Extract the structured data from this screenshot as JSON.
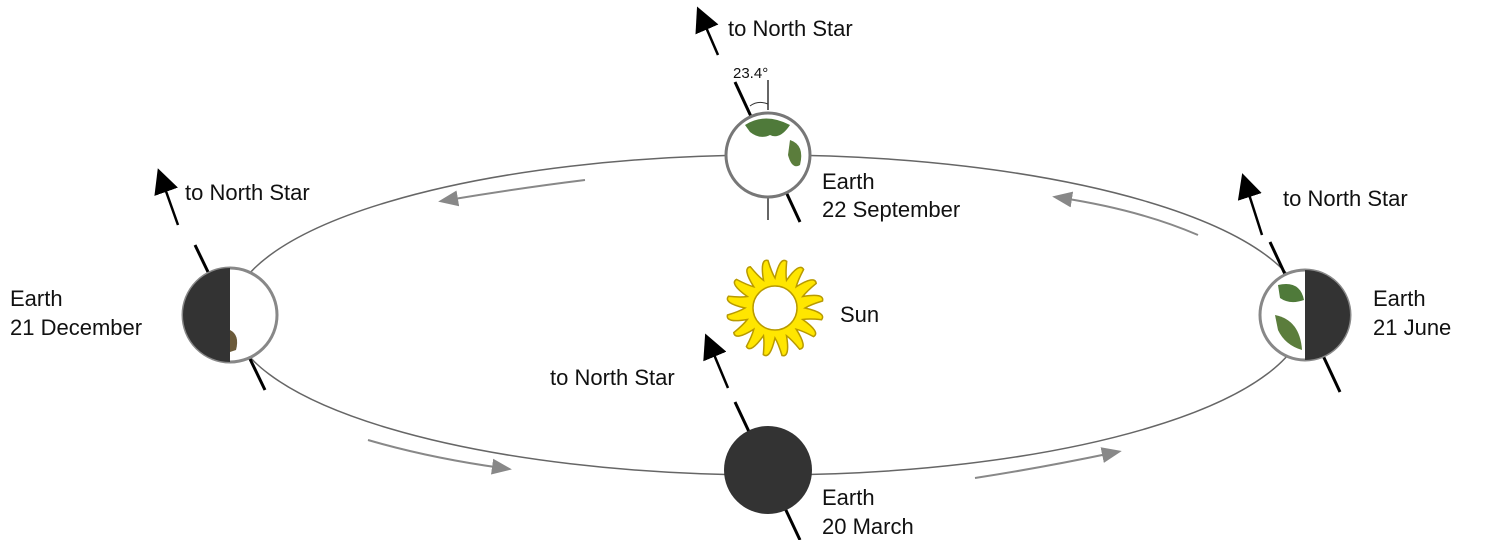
{
  "sun": {
    "label": "Sun"
  },
  "earths": [
    {
      "name": "Earth",
      "date": "22 September",
      "pointer": "to North Star",
      "tilt": "23.4°"
    },
    {
      "name": "Earth",
      "date": "21 December",
      "pointer": "to North Star"
    },
    {
      "name": "Earth",
      "date": "21 June",
      "pointer": "to North Star"
    },
    {
      "name": "Earth",
      "date": "20 March",
      "pointer": "to North Star"
    }
  ]
}
